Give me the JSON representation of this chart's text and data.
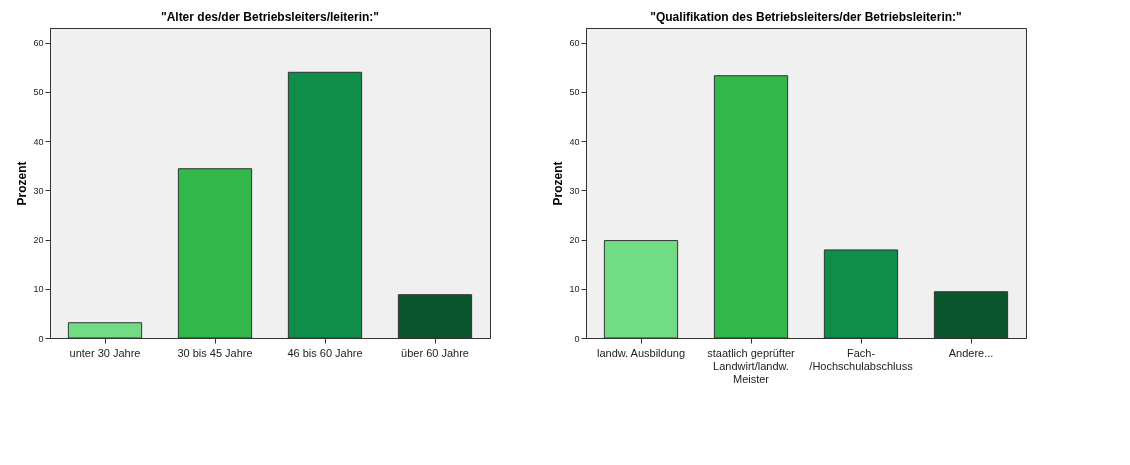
{
  "chart_data": [
    {
      "type": "bar",
      "title": "\"Alter des/der Betriebsleiters/leiterin:\"",
      "ylabel": "Prozent",
      "categories": [
        "unter 30 Jahre",
        "30 bis 45 Jahre",
        "46 bis 60 Jahre",
        "über 60 Jahre"
      ],
      "values": [
        3.1,
        34.4,
        54.0,
        8.8
      ],
      "colors": [
        "#72dc84",
        "#31b74a",
        "#0f8e4a",
        "#0a552b"
      ],
      "ylim": [
        0,
        63
      ],
      "yticks": [
        0,
        10,
        20,
        30,
        40,
        50,
        60
      ],
      "grid": false
    },
    {
      "type": "bar",
      "title": "\"Qualifikation des Betriebsleiters/der Betriebsleiterin:\"",
      "ylabel": "Prozent",
      "categories": [
        "landw. Ausbildung",
        "staatlich geprüfter\nLandwirt/landw.\nMeister",
        "Fach-\n/Hochschulabschluss",
        "Andere..."
      ],
      "values": [
        19.8,
        53.3,
        17.9,
        9.4
      ],
      "colors": [
        "#72dc84",
        "#31b74a",
        "#0f8e4a",
        "#0a552b"
      ],
      "ylim": [
        0,
        63
      ],
      "yticks": [
        0,
        10,
        20,
        30,
        40,
        50,
        60
      ],
      "grid": false
    }
  ]
}
